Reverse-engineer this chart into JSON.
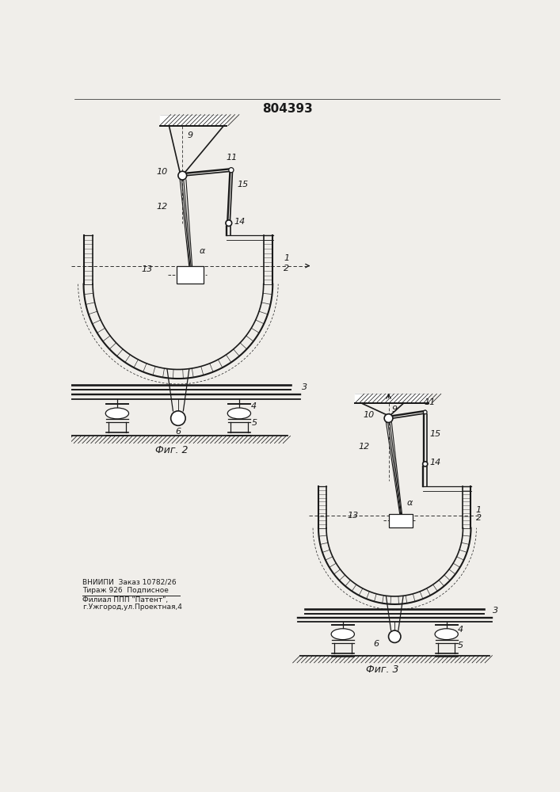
{
  "title": "804393",
  "fig2_caption": "Фиг. 2",
  "fig3_caption": "Фиг. 3",
  "footer_line1": "ВНИИПИ  Заказ 10782/26",
  "footer_line2": "Тираж 926  Подписное",
  "footer_line3": "Филиал ППП \"Патент\",",
  "footer_line4": "г.Ужгород,ул.Проектная,4",
  "bg_color": "#f0eeea",
  "line_color": "#1a1a1a"
}
